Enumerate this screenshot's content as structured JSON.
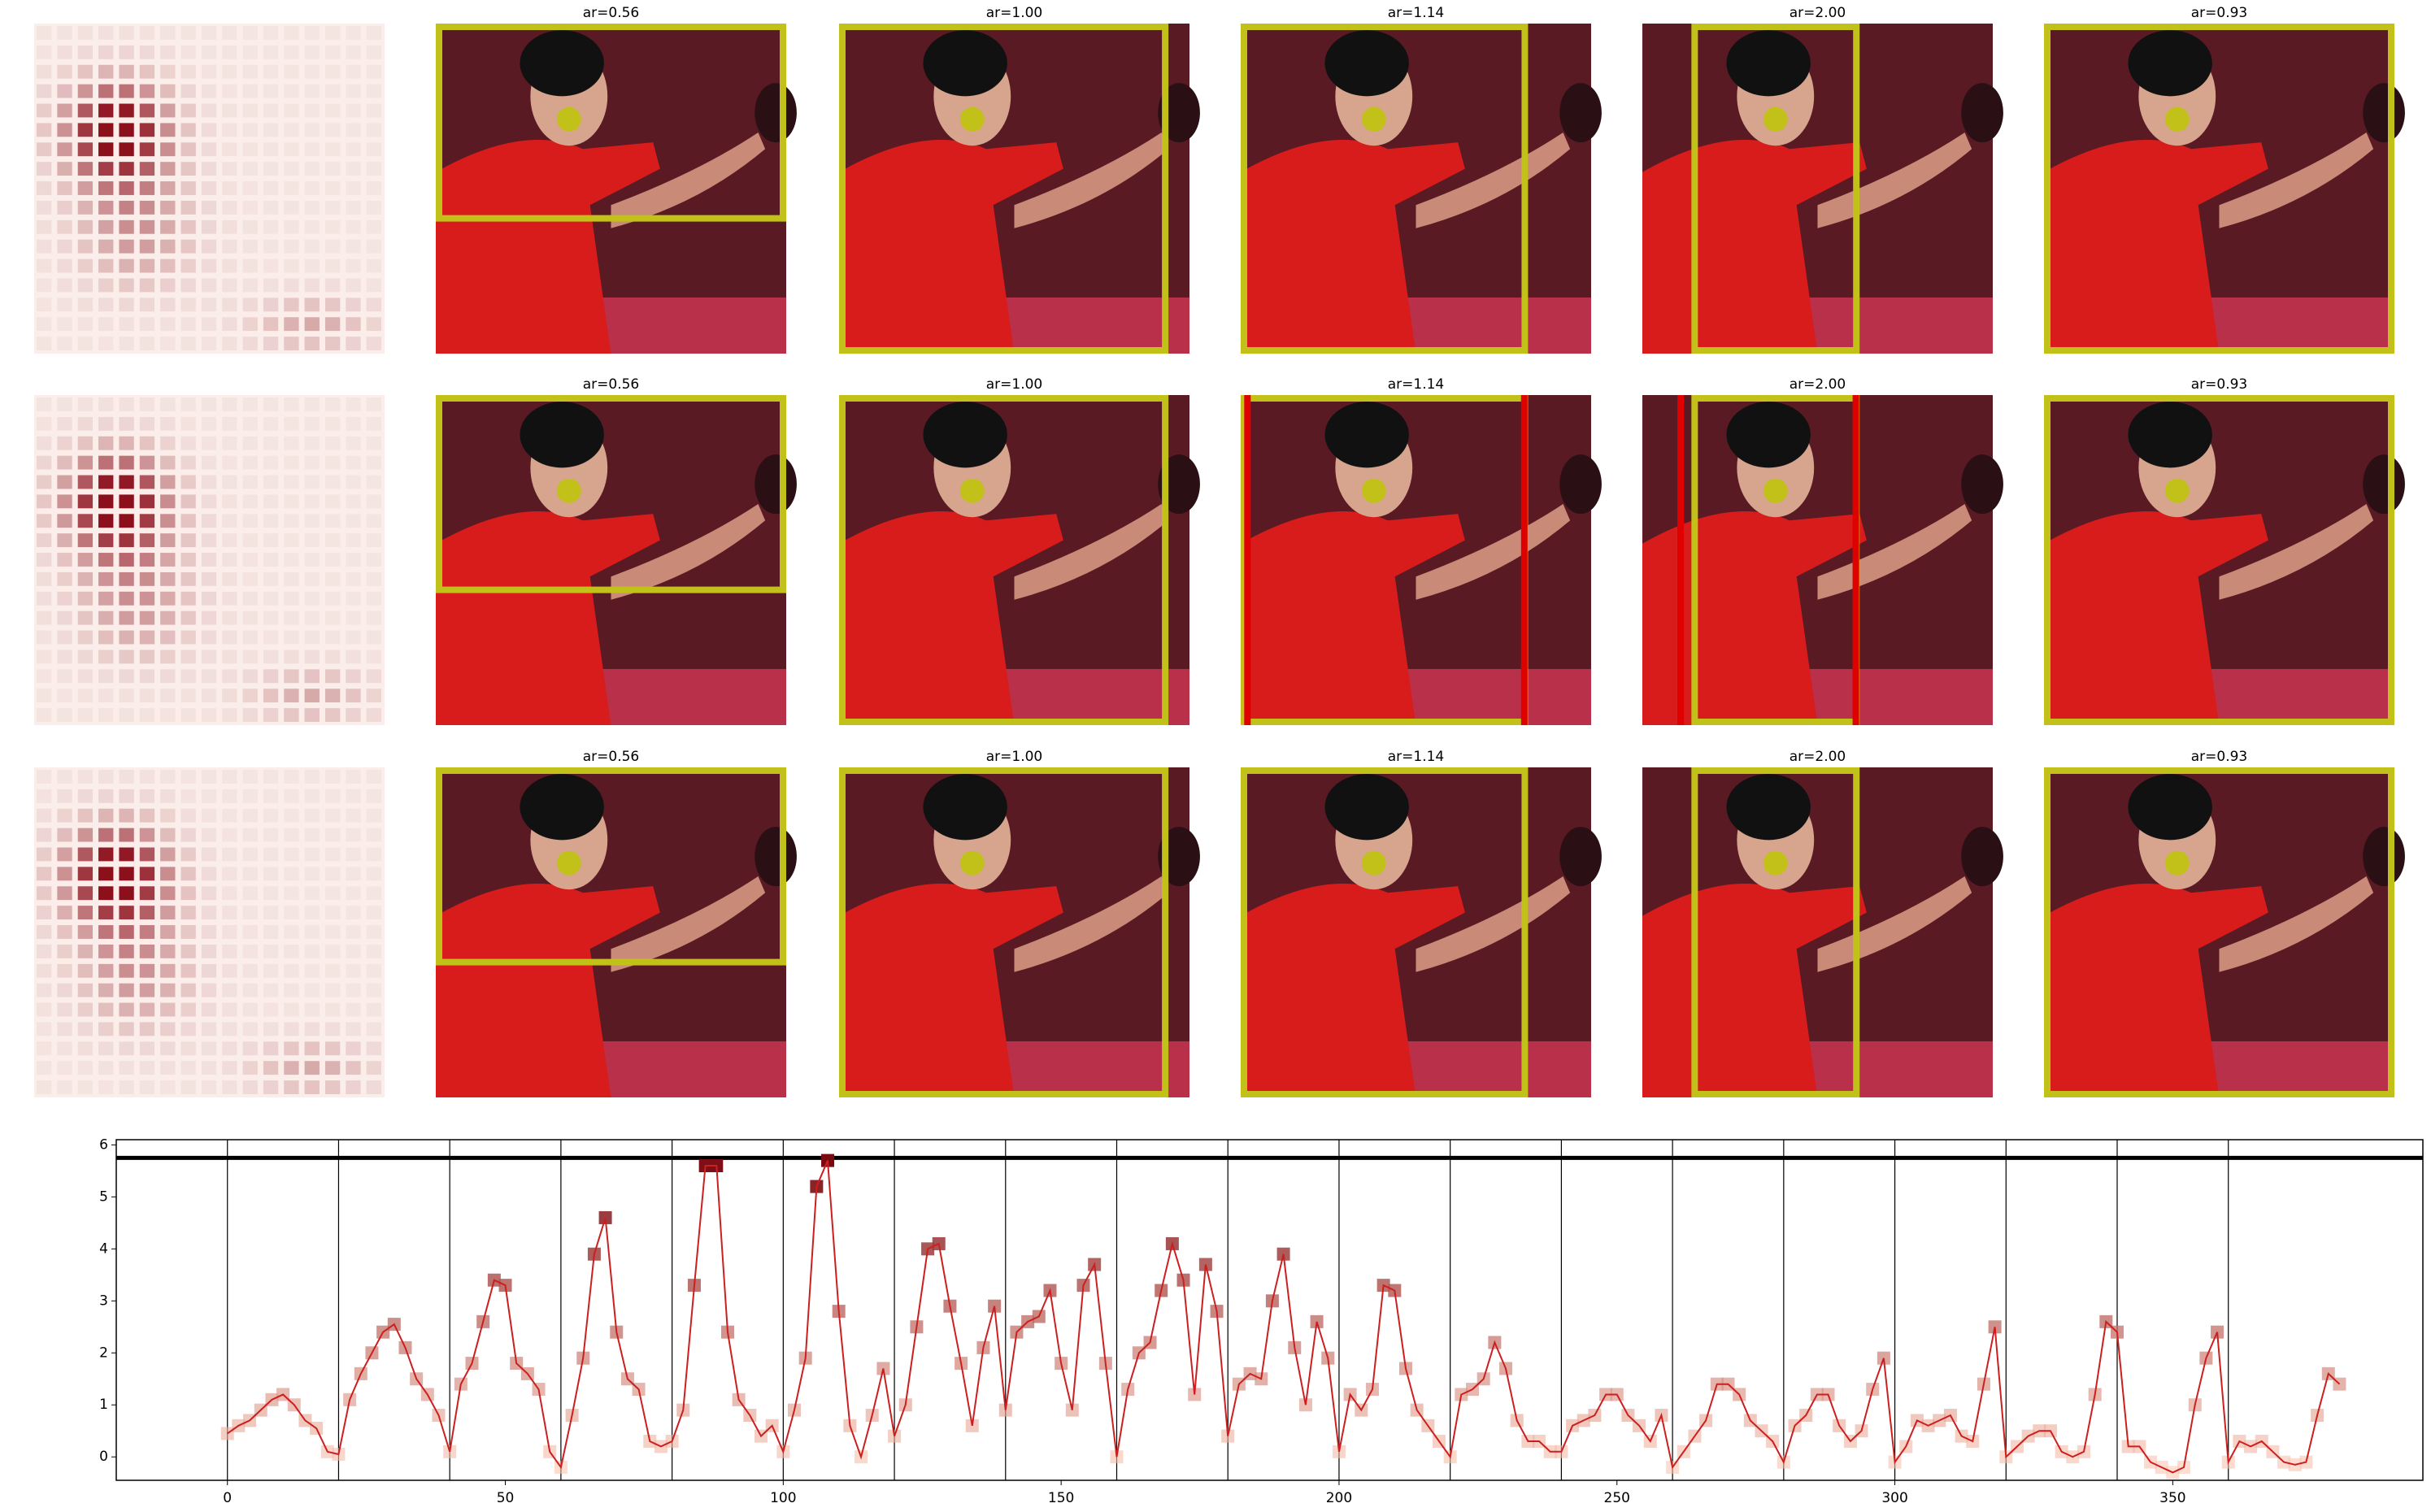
{
  "image_grid": {
    "titles": [
      [
        "ar=0.56",
        "ar=1.00",
        "ar=1.14",
        "ar=2.00",
        "ar=0.93"
      ],
      [
        "ar=0.56",
        "ar=1.00",
        "ar=1.14",
        "ar=2.00",
        "ar=0.93"
      ],
      [
        "ar=0.56",
        "ar=1.00",
        "ar=1.14",
        "ar=2.00",
        "ar=0.93"
      ]
    ]
  },
  "chart_data": {
    "type": "line",
    "color": "#cc1f1f",
    "marker_colors": [
      "#fcc5b0",
      "#7a0a12"
    ],
    "hline": 5.75,
    "hline_color": "#000000",
    "vlines": [
      0,
      20,
      40,
      60,
      80,
      100,
      120,
      140,
      160,
      180,
      200,
      220,
      240,
      260,
      280,
      300,
      320,
      340,
      360
    ],
    "xlim": [
      -20,
      395
    ],
    "ylim": [
      -0.45,
      6.1
    ],
    "xticks": [
      0,
      50,
      100,
      150,
      200,
      250,
      300,
      350
    ],
    "yticks": [
      0,
      1,
      2,
      3,
      4,
      5,
      6
    ],
    "x": [
      0,
      2,
      4,
      6,
      8,
      10,
      12,
      14,
      16,
      18,
      20,
      22,
      24,
      26,
      28,
      30,
      32,
      34,
      36,
      38,
      40,
      42,
      44,
      46,
      48,
      50,
      52,
      54,
      56,
      58,
      60,
      62,
      64,
      66,
      68,
      70,
      72,
      74,
      76,
      78,
      80,
      82,
      84,
      86,
      88,
      90,
      92,
      94,
      96,
      98,
      100,
      102,
      104,
      106,
      108,
      110,
      112,
      114,
      116,
      118,
      120,
      122,
      124,
      126,
      128,
      130,
      132,
      134,
      136,
      138,
      140,
      142,
      144,
      146,
      148,
      150,
      152,
      154,
      156,
      158,
      160,
      162,
      164,
      166,
      168,
      170,
      172,
      174,
      176,
      178,
      180,
      182,
      184,
      186,
      188,
      190,
      192,
      194,
      196,
      198,
      200,
      202,
      204,
      206,
      208,
      210,
      212,
      214,
      216,
      218,
      220,
      222,
      224,
      226,
      228,
      230,
      232,
      234,
      236,
      238,
      240,
      242,
      244,
      246,
      248,
      250,
      252,
      254,
      256,
      258,
      260,
      262,
      264,
      266,
      268,
      270,
      272,
      274,
      276,
      278,
      280,
      282,
      284,
      286,
      288,
      290,
      292,
      294,
      296,
      298,
      300,
      302,
      304,
      306,
      308,
      310,
      312,
      314,
      316,
      318,
      320,
      322,
      324,
      326,
      328,
      330,
      332,
      334,
      336,
      338,
      340,
      342,
      344,
      346,
      348,
      350,
      352,
      354,
      356,
      358,
      360,
      362,
      364,
      366,
      368,
      370,
      372,
      374,
      376,
      378,
      380
    ],
    "values": [
      0.45,
      0.6,
      0.7,
      0.9,
      1.1,
      1.2,
      1.0,
      0.7,
      0.55,
      0.1,
      0.05,
      1.1,
      1.6,
      2.0,
      2.4,
      2.55,
      2.1,
      1.5,
      1.2,
      0.8,
      0.1,
      1.4,
      1.8,
      2.6,
      3.4,
      3.3,
      1.8,
      1.6,
      1.3,
      0.1,
      -0.2,
      0.8,
      1.9,
      3.9,
      4.6,
      2.4,
      1.5,
      1.3,
      0.3,
      0.2,
      0.3,
      0.9,
      3.3,
      5.6,
      5.6,
      2.4,
      1.1,
      0.8,
      0.4,
      0.6,
      0.1,
      0.9,
      1.9,
      5.2,
      5.7,
      2.8,
      0.6,
      0.0,
      0.8,
      1.7,
      0.4,
      1.0,
      2.5,
      4.0,
      4.1,
      2.9,
      1.8,
      0.6,
      2.1,
      2.9,
      0.9,
      2.4,
      2.6,
      2.7,
      3.2,
      1.8,
      0.9,
      3.3,
      3.7,
      1.8,
      0.0,
      1.3,
      2.0,
      2.2,
      3.2,
      4.1,
      3.4,
      1.2,
      3.7,
      2.8,
      0.4,
      1.4,
      1.6,
      1.5,
      3.0,
      3.9,
      2.1,
      1.0,
      2.6,
      1.9,
      0.1,
      1.2,
      0.9,
      1.3,
      3.3,
      3.2,
      1.7,
      0.9,
      0.6,
      0.3,
      0.0,
      1.2,
      1.3,
      1.5,
      2.2,
      1.7,
      0.7,
      0.3,
      0.3,
      0.1,
      0.1,
      0.6,
      0.7,
      0.8,
      1.2,
      1.2,
      0.8,
      0.6,
      0.3,
      0.8,
      -0.2,
      0.1,
      0.4,
      0.7,
      1.4,
      1.4,
      1.2,
      0.7,
      0.5,
      0.3,
      -0.1,
      0.6,
      0.8,
      1.2,
      1.2,
      0.6,
      0.3,
      0.5,
      1.3,
      1.9,
      -0.1,
      0.2,
      0.7,
      0.6,
      0.7,
      0.8,
      0.4,
      0.3,
      1.4,
      2.5,
      0.0,
      0.2,
      0.4,
      0.5,
      0.5,
      0.1,
      0.0,
      0.1,
      1.2,
      2.6,
      2.4,
      0.2,
      0.2,
      -0.1,
      -0.2,
      -0.3,
      -0.2,
      1.0,
      1.9,
      2.4,
      -0.1,
      0.3,
      0.2,
      0.3,
      0.1,
      -0.1,
      -0.15,
      -0.1,
      0.8,
      1.6,
      1.4
    ]
  }
}
